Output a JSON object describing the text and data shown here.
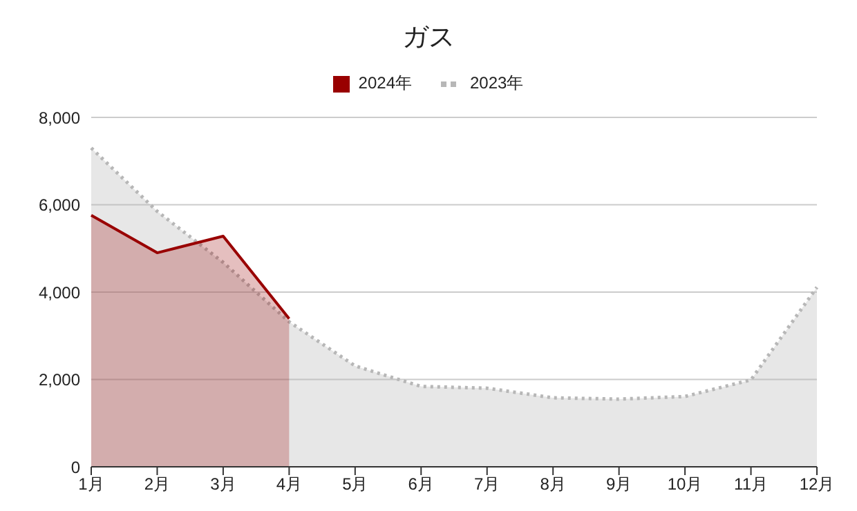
{
  "chart_data": {
    "type": "area",
    "title": "ガス",
    "categories": [
      "1月",
      "2月",
      "3月",
      "4月",
      "5月",
      "6月",
      "7月",
      "8月",
      "9月",
      "10月",
      "11月",
      "12月"
    ],
    "series": [
      {
        "name": "2023年",
        "color": "#b7b7b7",
        "line_style": "dotted",
        "values": [
          7300,
          5850,
          4680,
          3320,
          2310,
          1840,
          1800,
          1580,
          1550,
          1610,
          1990,
          4110
        ]
      },
      {
        "name": "2024年",
        "color": "#990000",
        "line_style": "solid",
        "values": [
          5760,
          4900,
          5280,
          3390,
          null,
          null,
          null,
          null,
          null,
          null,
          null,
          null
        ]
      }
    ],
    "ylim": [
      0,
      8000
    ],
    "yticks": [
      0,
      {
        "value": 2000,
        "label": "2,000"
      },
      {
        "value": 4000,
        "label": "4,000"
      },
      {
        "value": 6000,
        "label": "6,000"
      },
      {
        "value": 8000,
        "label": "8,000"
      }
    ],
    "grid": "y",
    "legend": "top"
  }
}
